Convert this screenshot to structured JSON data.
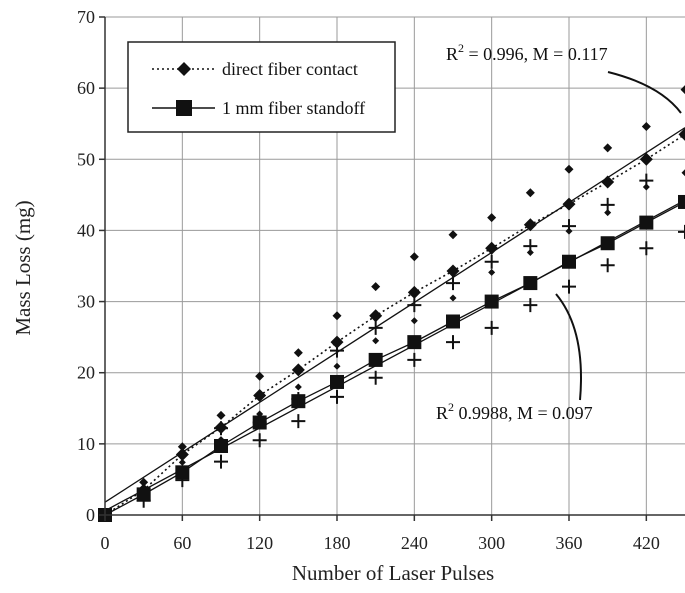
{
  "chart_data": {
    "type": "scatter",
    "xlabel": "Number of Laser Pulses",
    "ylabel": "Mass Loss (mg)",
    "xlim": [
      0,
      450
    ],
    "ylim": [
      0,
      70
    ],
    "x_ticks": [
      "0",
      "60",
      "120",
      "180",
      "240",
      "300",
      "360",
      "420"
    ],
    "y_ticks": [
      "0",
      "10",
      "20",
      "30",
      "40",
      "50",
      "60",
      "70"
    ],
    "grid": true,
    "legend_position": "top-left",
    "legend": [
      "direct fiber contact",
      "1 mm fiber standoff"
    ],
    "series": [
      {
        "name": "direct fiber contact",
        "marker": "diamond",
        "line": "dotted",
        "x": [
          0,
          30,
          60,
          90,
          120,
          150,
          180,
          210,
          240,
          270,
          300,
          330,
          360,
          390,
          420,
          450
        ],
        "y": [
          0,
          3.5,
          8.5,
          12.3,
          16.8,
          20.4,
          24.3,
          28.0,
          31.3,
          34.3,
          37.5,
          40.8,
          43.7,
          46.8,
          50.0,
          53.5
        ],
        "upper": [
          0,
          4.6,
          9.6,
          14.0,
          19.5,
          22.8,
          28.0,
          32.1,
          36.3,
          39.4,
          41.8,
          45.3,
          48.6,
          51.6,
          54.6,
          59.8
        ],
        "lower": [
          0,
          2.8,
          7.4,
          10.6,
          14.2,
          18.0,
          20.9,
          24.5,
          27.3,
          30.5,
          34.1,
          36.9,
          39.9,
          42.5,
          46.1,
          48.1
        ]
      },
      {
        "name": "1 mm fiber standoff",
        "marker": "square",
        "line": "solid",
        "x": [
          0,
          30,
          60,
          90,
          120,
          150,
          180,
          210,
          240,
          270,
          300,
          330,
          360,
          390,
          420,
          450
        ],
        "y": [
          0,
          2.9,
          6.0,
          9.7,
          13.0,
          16.0,
          18.7,
          21.8,
          24.3,
          27.2,
          30.0,
          32.6,
          35.6,
          38.2,
          41.1,
          44.0
        ],
        "lower": [
          0,
          2.0,
          4.9,
          7.5,
          10.5,
          13.2,
          16.6,
          19.3,
          21.8,
          24.3,
          26.3,
          29.5,
          32.1,
          35.1,
          37.5,
          39.8
        ]
      }
    ],
    "fits": [
      {
        "series": "direct fiber contact",
        "slope": 0.117,
        "intercept": 1.8,
        "r2_label": "R",
        "r2_sup": "2",
        "r2_rest": " = 0.996, M = 0.117"
      },
      {
        "series": "1 mm fiber standoff",
        "slope": 0.097,
        "intercept": 0.6,
        "r2_label": "R",
        "r2_sup": "2",
        "r2_rest": " 0.9988, M = 0.097"
      }
    ],
    "extra_cross_points": [
      {
        "x": 90,
        "y": 12.2
      },
      {
        "x": 120,
        "y": 13.0
      },
      {
        "x": 150,
        "y": 16.3
      },
      {
        "x": 180,
        "y": 23.1
      },
      {
        "x": 210,
        "y": 26.3
      },
      {
        "x": 240,
        "y": 29.5
      },
      {
        "x": 270,
        "y": 32.6
      },
      {
        "x": 300,
        "y": 35.6
      },
      {
        "x": 330,
        "y": 37.8
      },
      {
        "x": 360,
        "y": 40.6
      },
      {
        "x": 390,
        "y": 43.6
      },
      {
        "x": 420,
        "y": 47.0
      }
    ]
  }
}
